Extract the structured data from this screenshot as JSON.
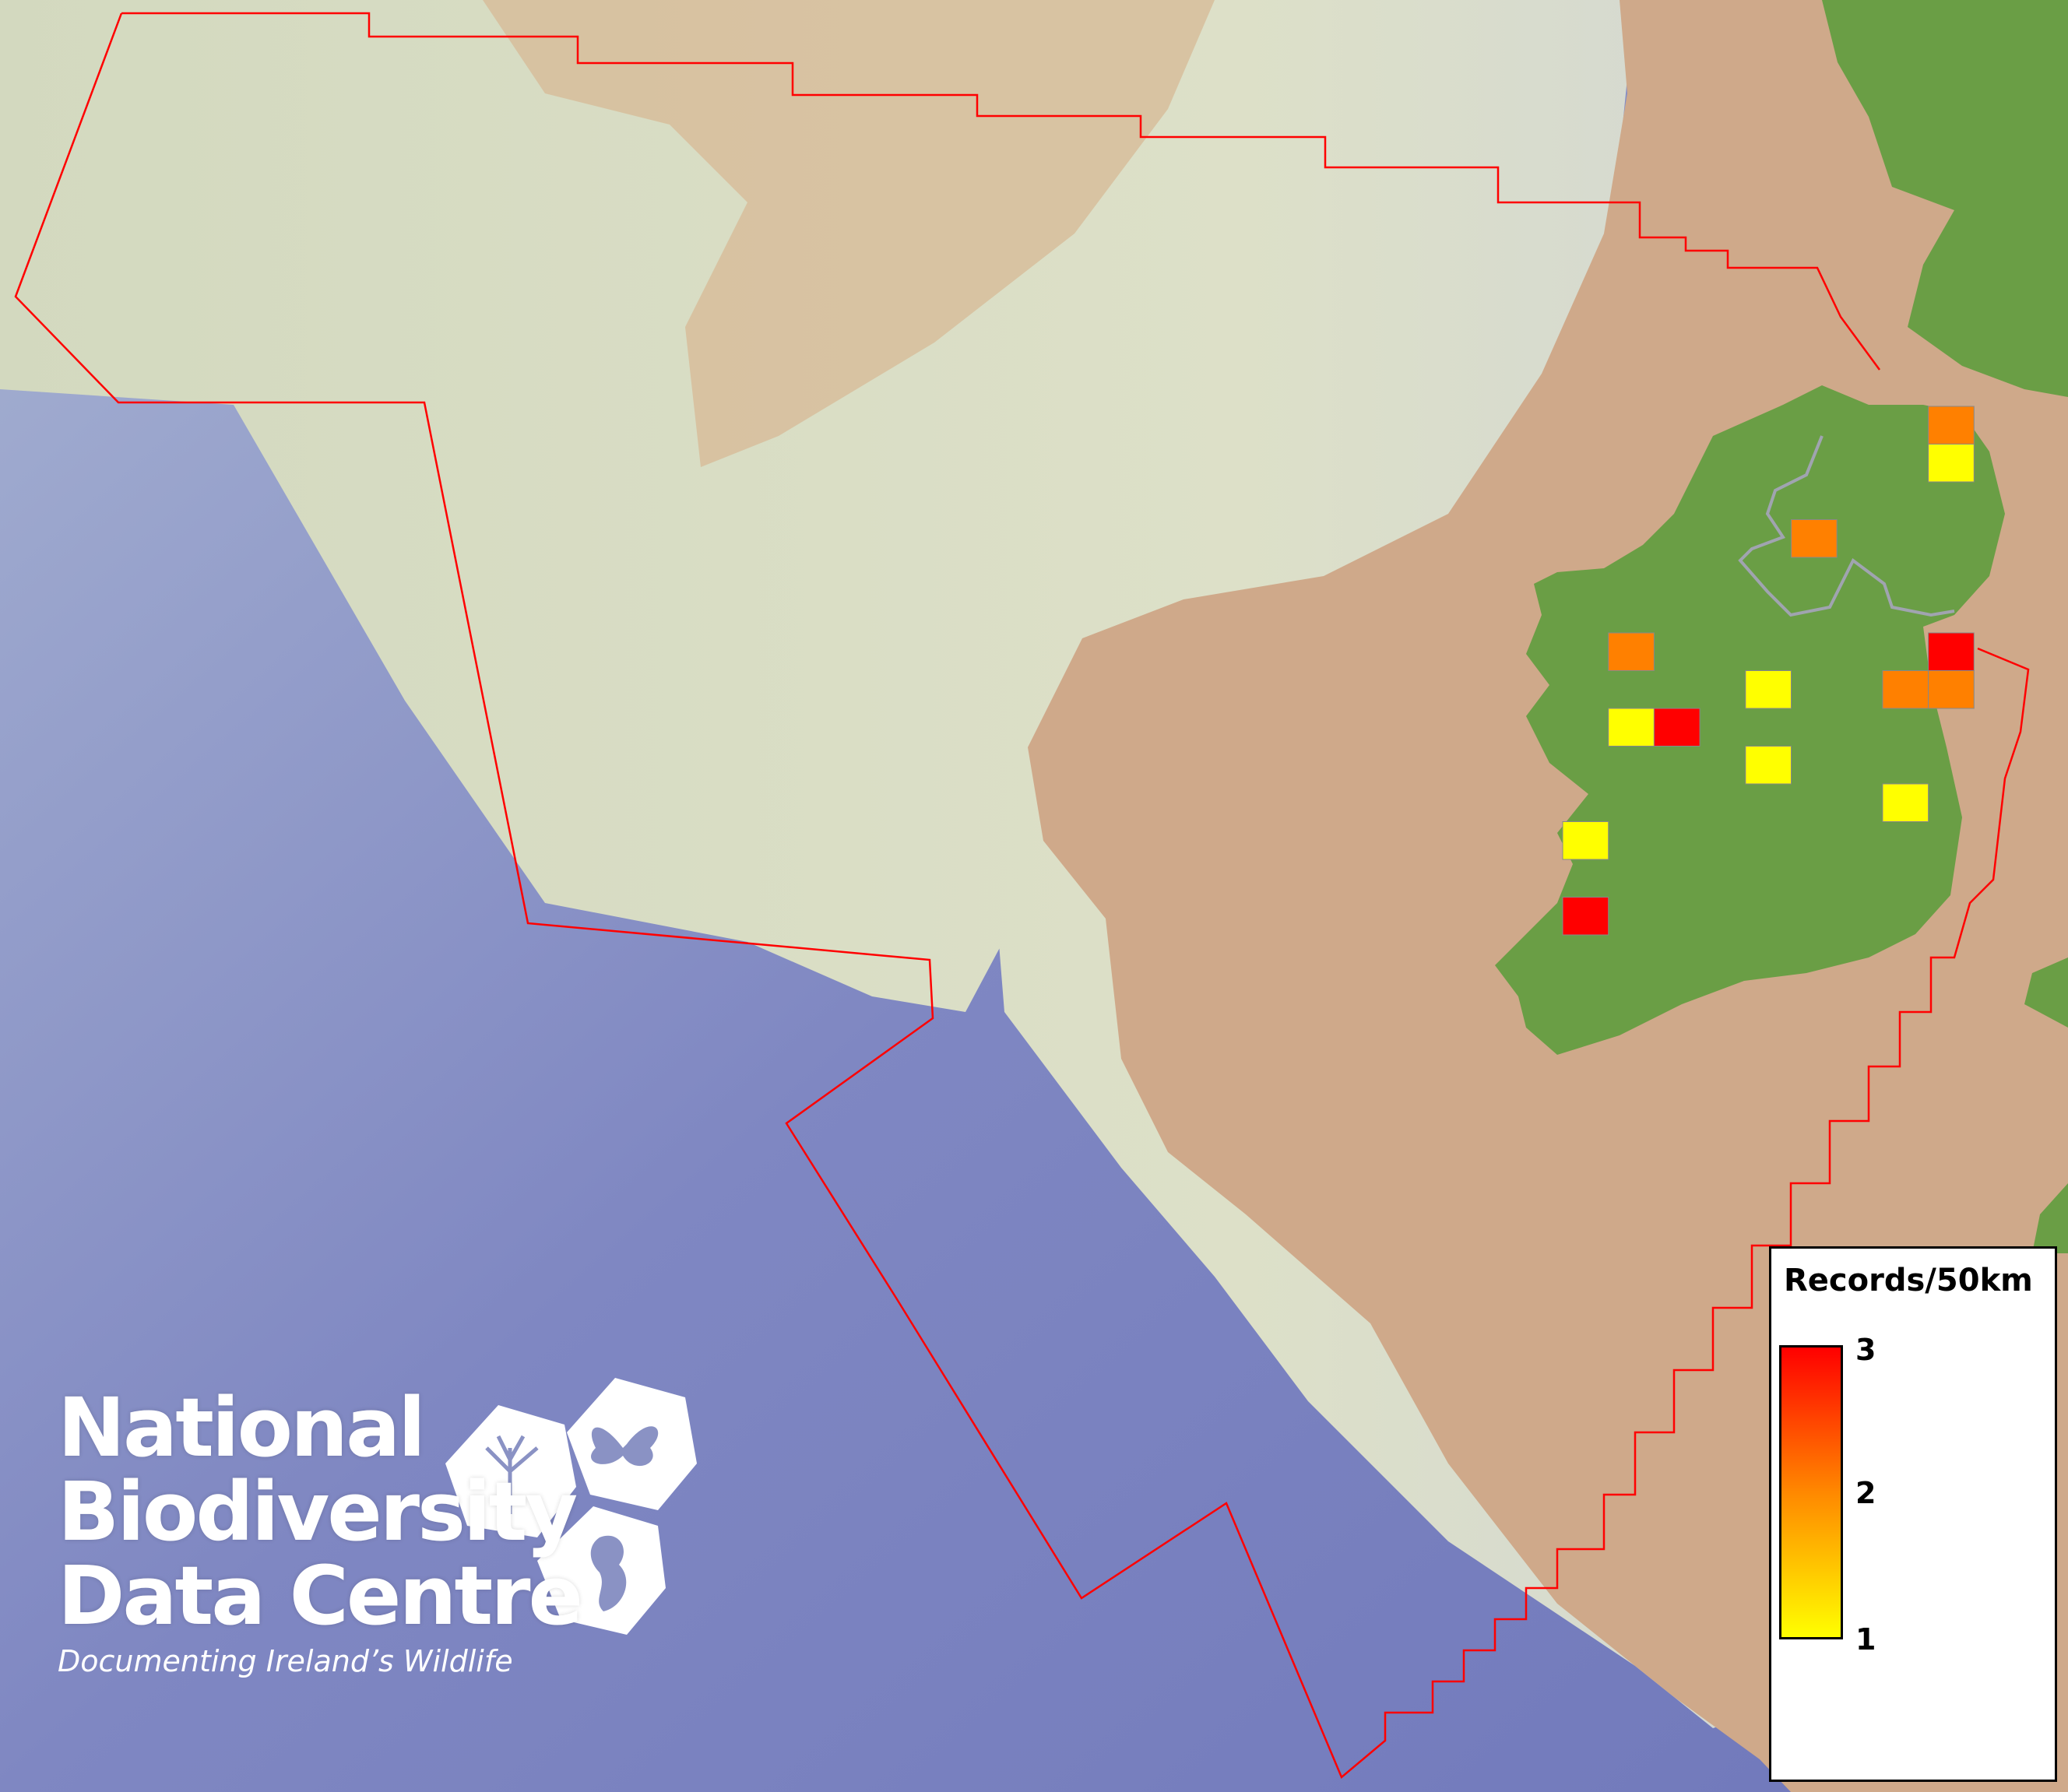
{
  "map": {
    "colors": {
      "deep_sea": "#7f87c2",
      "shelf": "#d6d8c0",
      "slope": "#b9bfd2",
      "shallow": "#cfa98a",
      "land": "#6a9e45",
      "boundary": "#ff0000",
      "border_line": "#a0a4b0"
    },
    "records": [
      {
        "grid_col": 8,
        "grid_row": 0,
        "value": 2
      },
      {
        "grid_col": 8,
        "grid_row": 1,
        "value": 1
      },
      {
        "grid_col": 5,
        "grid_row": 3,
        "value": 2
      },
      {
        "grid_col": 1,
        "grid_row": 6,
        "value": 2
      },
      {
        "grid_col": 8,
        "grid_row": 6,
        "value": 3
      },
      {
        "grid_col": 4,
        "grid_row": 7,
        "value": 1
      },
      {
        "grid_col": 7,
        "grid_row": 7,
        "value": 2
      },
      {
        "grid_col": 8,
        "grid_row": 7,
        "value": 2
      },
      {
        "grid_col": 1,
        "grid_row": 8,
        "value": 1
      },
      {
        "grid_col": 2,
        "grid_row": 8,
        "value": 3
      },
      {
        "grid_col": 4,
        "grid_row": 9,
        "value": 1
      },
      {
        "grid_col": 7,
        "grid_row": 10,
        "value": 1
      },
      {
        "grid_col": 0,
        "grid_row": 11,
        "value": 1
      },
      {
        "grid_col": 0,
        "grid_row": 13,
        "value": 3
      }
    ],
    "value_colors": {
      "1": "#ffff00",
      "2": "#ff8000",
      "3": "#ff0000"
    }
  },
  "legend": {
    "title": "Records/50km",
    "min_label": "1",
    "mid_label": "2",
    "max_label": "3",
    "gradient": [
      "#ffff00",
      "#ff8800",
      "#ff0000"
    ]
  },
  "logo": {
    "line1": "National",
    "line2": "Biodiversity",
    "line3": "Data Centre",
    "tagline": "Documenting Ireland’s Wildlife"
  }
}
